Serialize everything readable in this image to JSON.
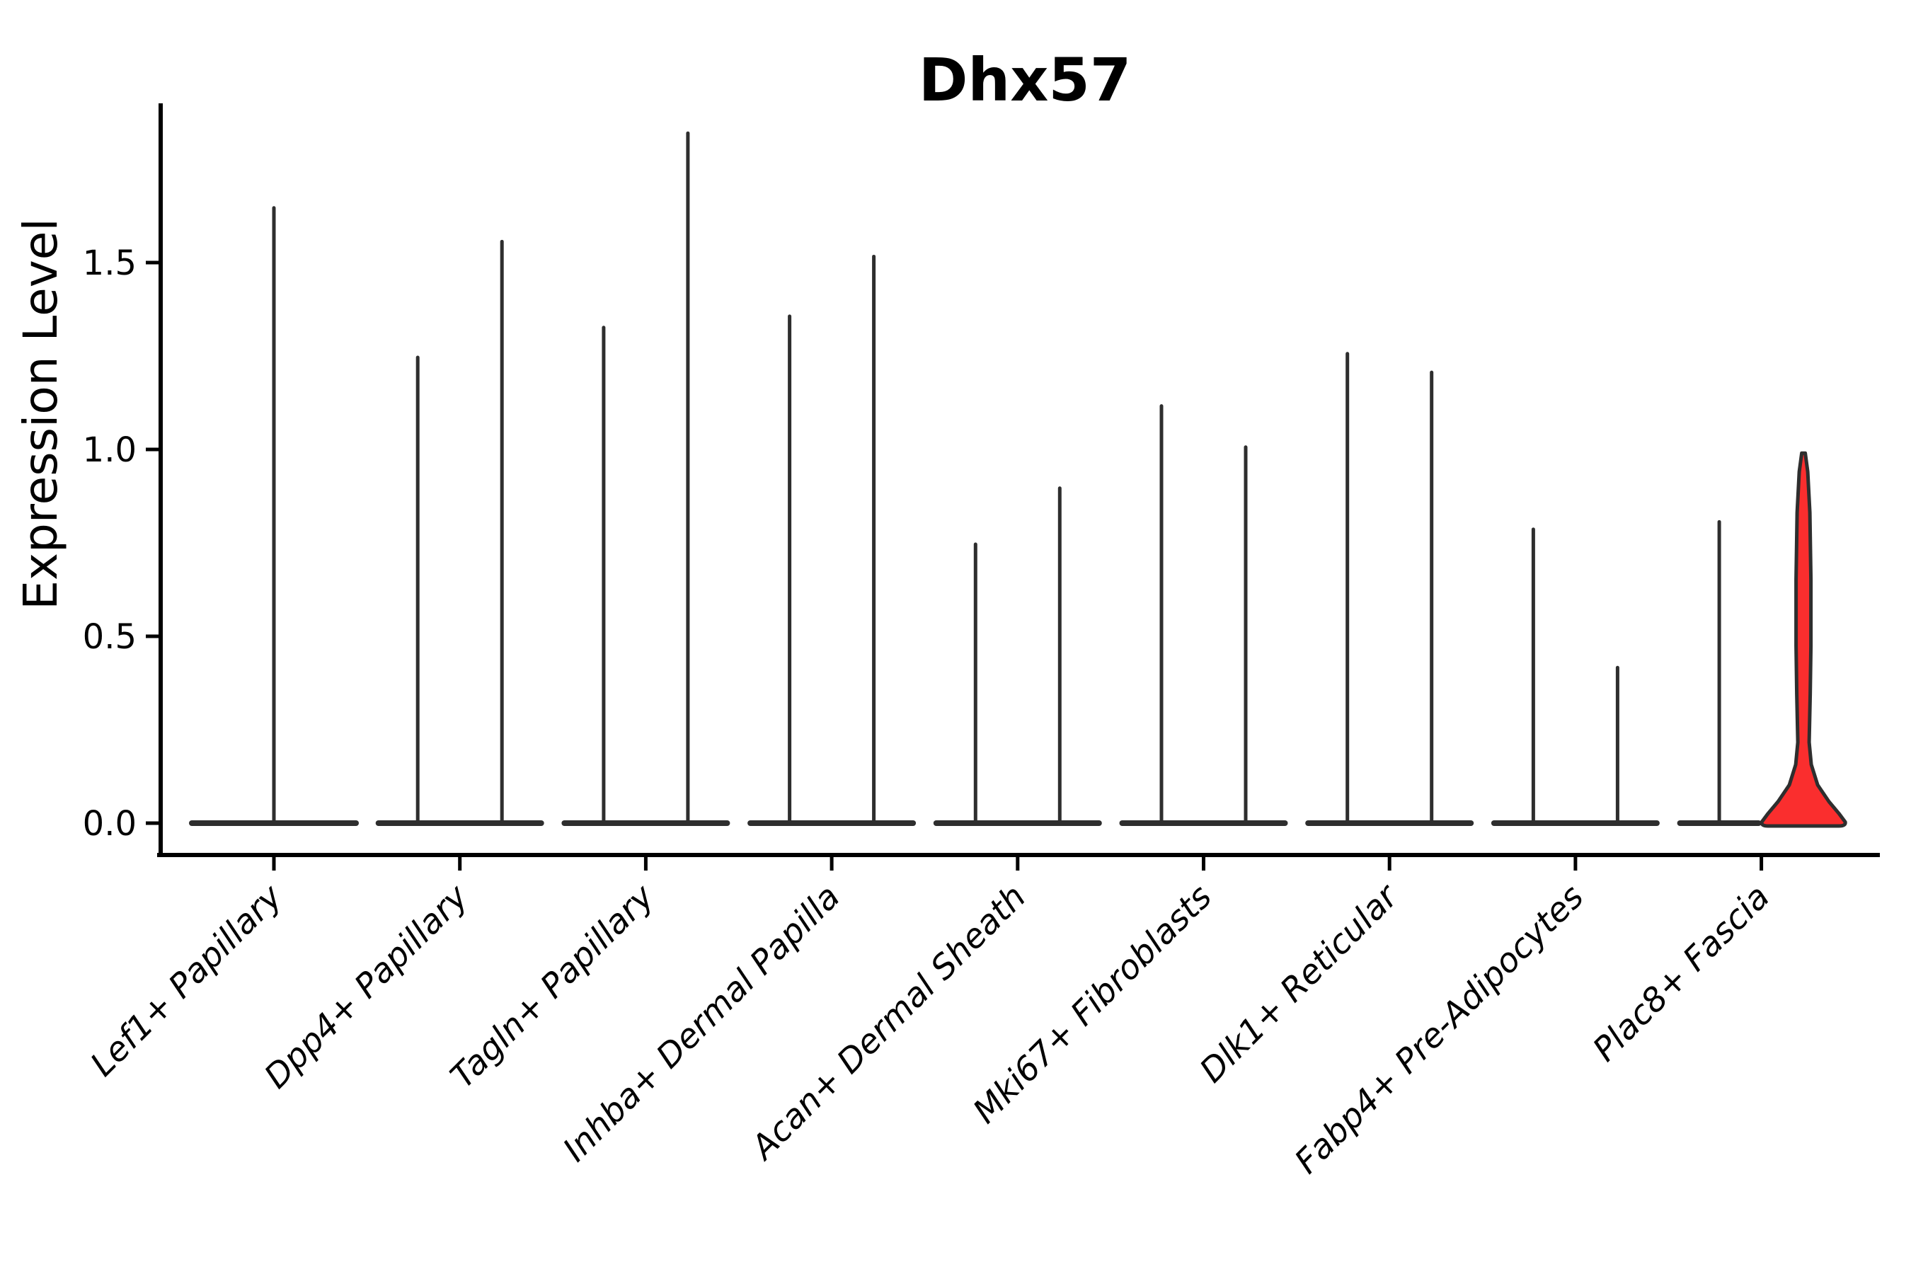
{
  "figure": {
    "title": "Dhx57",
    "y_axis_label": "Expression Level"
  },
  "chart_data": {
    "type": "violin",
    "title": "Dhx57",
    "xlabel": "",
    "ylabel": "Expression Level",
    "ylim": [
      -0.09,
      1.93
    ],
    "grid": false,
    "legend": "none",
    "yticks": [
      {
        "label": "0.0",
        "value": 0.0
      },
      {
        "label": "0.5",
        "value": 0.5
      },
      {
        "label": "1.0",
        "value": 1.0
      },
      {
        "label": "1.5",
        "value": 1.5
      }
    ],
    "categories": [
      "Lef1+ Papillary",
      "Dpp4+ Papillary",
      "Tagln+ Papillary",
      "Inhba+ Dermal Papilla",
      "Acan+ Dermal Sheath",
      "Mki67+ Fibroblasts",
      "Dlk1+ Reticular",
      "Fabp4+ Pre-Adipocytes",
      "Plac8+ Fascia"
    ],
    "violin_style": "zero-inflated: wide flat base at 0 with thin spike to max expression",
    "series": [
      {
        "category": "Lef1+ Papillary",
        "violins": [
          {
            "offset": "center",
            "max": 1.65,
            "highlighted": false
          }
        ]
      },
      {
        "category": "Dpp4+ Papillary",
        "violins": [
          {
            "offset": "left",
            "max": 1.25,
            "highlighted": false
          },
          {
            "offset": "right",
            "max": 1.56,
            "highlighted": false
          }
        ]
      },
      {
        "category": "Tagln+ Papillary",
        "violins": [
          {
            "offset": "left",
            "max": 1.33,
            "highlighted": false
          },
          {
            "offset": "right",
            "max": 1.85,
            "highlighted": false
          }
        ]
      },
      {
        "category": "Inhba+ Dermal Papilla",
        "violins": [
          {
            "offset": "left",
            "max": 1.36,
            "highlighted": false
          },
          {
            "offset": "right",
            "max": 1.52,
            "highlighted": false
          }
        ]
      },
      {
        "category": "Acan+ Dermal Sheath",
        "violins": [
          {
            "offset": "left",
            "max": 0.75,
            "highlighted": false
          },
          {
            "offset": "right",
            "max": 0.9,
            "highlighted": false
          }
        ]
      },
      {
        "category": "Mki67+ Fibroblasts",
        "violins": [
          {
            "offset": "left",
            "max": 1.12,
            "highlighted": false
          },
          {
            "offset": "right",
            "max": 1.01,
            "highlighted": false
          }
        ]
      },
      {
        "category": "Dlk1+ Reticular",
        "violins": [
          {
            "offset": "left",
            "max": 1.26,
            "highlighted": false
          },
          {
            "offset": "right",
            "max": 1.21,
            "highlighted": false
          }
        ]
      },
      {
        "category": "Fabp4+ Pre-Adipocytes",
        "violins": [
          {
            "offset": "left",
            "max": 0.79,
            "highlighted": false
          },
          {
            "offset": "right",
            "max": 0.42,
            "highlighted": false
          }
        ]
      },
      {
        "category": "Plac8+ Fascia",
        "violins": [
          {
            "offset": "left",
            "max": 0.81,
            "highlighted": false
          },
          {
            "offset": "right",
            "max": 0.99,
            "highlighted": true
          }
        ]
      }
    ],
    "colors": {
      "violin_outline": "#2e2e2e",
      "highlight_fill": "#fa2e2e",
      "axis": "#000000"
    }
  }
}
